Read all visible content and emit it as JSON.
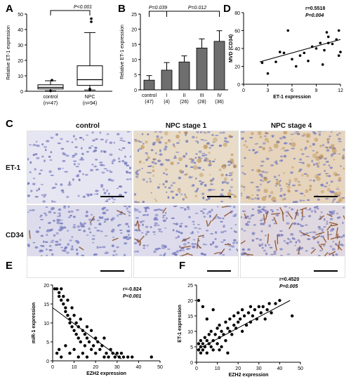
{
  "panel_labels": {
    "a": "A",
    "b": "B",
    "c": "C",
    "d": "D",
    "e": "E",
    "f": "F"
  },
  "colors": {
    "bar_fill": "#6e6e6e",
    "box_fill": "#ffffff",
    "stain_blue": "#7b7fc0",
    "stain_brown": "#8c4a1c",
    "tissue_bg": "#dcdcef",
    "point": "#000000"
  },
  "chart_data": [
    {
      "type": "box",
      "panel": "A",
      "ylabel": "Relative ET-1 expression",
      "ylim": [
        0,
        50
      ],
      "yticks": [
        "0",
        "10",
        "20",
        "30",
        "40",
        "50"
      ],
      "categories": [
        "control",
        "NPC"
      ],
      "counts": [
        "(n=47)",
        "(n=94)"
      ],
      "boxes": [
        {
          "min": 0.3,
          "q1": 1.5,
          "median": 2.5,
          "q3": 4.2,
          "max": 6.8,
          "outliers": [
            7.2,
            0.2
          ]
        },
        {
          "min": 0.8,
          "q1": 3.8,
          "median": 7.5,
          "q3": 16.5,
          "max": 38,
          "outliers": [
            45,
            47,
            1,
            1.5
          ]
        }
      ],
      "annotation": "P<0.001"
    },
    {
      "type": "bar",
      "panel": "B",
      "ylabel": "Relative ET-1 expression",
      "ylim": [
        0,
        25
      ],
      "yticks": [
        "0",
        "5",
        "10",
        "15",
        "20",
        "25"
      ],
      "categories": [
        "control",
        "I",
        "II",
        "III",
        "IV"
      ],
      "counts": [
        "(47)",
        "(4)",
        "(26)",
        "(28)",
        "(36)"
      ],
      "values": [
        3.2,
        6.5,
        9.2,
        13.8,
        16
      ],
      "errors": [
        1.5,
        2.5,
        2.0,
        3.0,
        3.5
      ],
      "annotations": [
        "P=0.039",
        "P=0.012"
      ]
    },
    {
      "type": "scatter",
      "panel": "D",
      "xlabel": "ET-1 expression",
      "ylabel": "MVD (CD34)",
      "xlim": [
        0,
        12
      ],
      "ylim": [
        0,
        80
      ],
      "xticks": [
        "0",
        "3",
        "6",
        "9",
        "12"
      ],
      "yticks": [
        "0",
        "20",
        "40",
        "60",
        "80"
      ],
      "points": [
        [
          2.3,
          24
        ],
        [
          3.0,
          12
        ],
        [
          4.0,
          25
        ],
        [
          4.5,
          36
        ],
        [
          5.0,
          35
        ],
        [
          5.5,
          60
        ],
        [
          6.0,
          28
        ],
        [
          6.5,
          20
        ],
        [
          7.0,
          32
        ],
        [
          7.5,
          35
        ],
        [
          8.0,
          26
        ],
        [
          8.5,
          42
        ],
        [
          9.0,
          40
        ],
        [
          9.5,
          46
        ],
        [
          9.8,
          22
        ],
        [
          10.0,
          38
        ],
        [
          10.3,
          58
        ],
        [
          10.5,
          53
        ],
        [
          11.0,
          45
        ],
        [
          11.5,
          50
        ],
        [
          11.8,
          60
        ],
        [
          12.0,
          36
        ],
        [
          11.8,
          32
        ],
        [
          10.5,
          46
        ]
      ],
      "fit": [
        [
          2,
          25
        ],
        [
          12,
          50
        ]
      ],
      "stats": [
        "r=0.5518",
        "P=0.004"
      ]
    },
    {
      "type": "scatter",
      "panel": "E",
      "xlabel": "EZH2 expression",
      "ylabel": "miR-1 expression",
      "xlim": [
        0,
        50
      ],
      "ylim": [
        0,
        20
      ],
      "xticks": [
        "0",
        "10",
        "20",
        "30",
        "40",
        "50"
      ],
      "yticks": [
        "0",
        "5",
        "10",
        "15",
        "20"
      ],
      "points": [
        [
          1,
          19
        ],
        [
          2,
          19
        ],
        [
          3,
          18
        ],
        [
          3,
          17
        ],
        [
          4,
          16
        ],
        [
          4,
          19
        ],
        [
          5,
          15
        ],
        [
          5,
          17
        ],
        [
          6,
          14
        ],
        [
          6,
          13
        ],
        [
          7,
          12
        ],
        [
          7,
          16
        ],
        [
          8,
          11
        ],
        [
          8,
          10
        ],
        [
          9,
          14
        ],
        [
          9,
          9
        ],
        [
          10,
          12
        ],
        [
          10,
          8
        ],
        [
          11,
          10
        ],
        [
          11,
          7
        ],
        [
          12,
          9
        ],
        [
          12,
          6
        ],
        [
          13,
          11
        ],
        [
          13,
          5
        ],
        [
          14,
          8
        ],
        [
          15,
          7
        ],
        [
          15,
          4
        ],
        [
          16,
          6
        ],
        [
          16,
          9
        ],
        [
          17,
          5
        ],
        [
          18,
          3
        ],
        [
          18,
          8
        ],
        [
          19,
          4
        ],
        [
          20,
          2
        ],
        [
          20,
          6
        ],
        [
          21,
          5
        ],
        [
          22,
          3
        ],
        [
          23,
          4
        ],
        [
          24,
          1
        ],
        [
          24,
          6
        ],
        [
          25,
          2
        ],
        [
          26,
          1
        ],
        [
          27,
          3
        ],
        [
          28,
          2
        ],
        [
          29,
          1
        ],
        [
          30,
          2
        ],
        [
          31,
          1
        ],
        [
          32,
          2
        ],
        [
          33,
          1
        ],
        [
          35,
          1
        ],
        [
          37,
          1
        ],
        [
          46,
          1
        ],
        [
          2,
          2
        ],
        [
          3,
          3
        ],
        [
          4,
          1
        ],
        [
          6,
          4
        ],
        [
          8,
          2
        ],
        [
          10,
          3
        ],
        [
          12,
          1
        ],
        [
          14,
          2
        ],
        [
          16,
          1
        ]
      ],
      "fit": [
        [
          0,
          14
        ],
        [
          32,
          0.5
        ]
      ],
      "stats": [
        "r=-0.824",
        "P<0.001"
      ]
    },
    {
      "type": "scatter",
      "panel": "F",
      "xlabel": "EZH2 expression",
      "ylabel": "ET-1 expression",
      "xlim": [
        0,
        50
      ],
      "ylim": [
        0,
        25
      ],
      "xticks": [
        "0",
        "10",
        "20",
        "30",
        "40",
        "50"
      ],
      "yticks": [
        "0",
        "5",
        "10",
        "15",
        "20",
        "25"
      ],
      "points": [
        [
          1,
          4
        ],
        [
          1,
          6
        ],
        [
          2,
          3
        ],
        [
          2,
          5
        ],
        [
          2,
          7
        ],
        [
          3,
          4
        ],
        [
          3,
          6
        ],
        [
          4,
          5
        ],
        [
          4,
          8
        ],
        [
          5,
          3
        ],
        [
          5,
          7
        ],
        [
          6,
          6
        ],
        [
          6,
          9
        ],
        [
          7,
          5
        ],
        [
          7,
          10
        ],
        [
          8,
          4
        ],
        [
          8,
          7
        ],
        [
          9,
          9
        ],
        [
          10,
          6
        ],
        [
          10,
          11
        ],
        [
          11,
          8
        ],
        [
          11,
          12
        ],
        [
          12,
          10
        ],
        [
          12,
          5
        ],
        [
          13,
          9
        ],
        [
          14,
          7
        ],
        [
          14,
          13
        ],
        [
          15,
          11
        ],
        [
          16,
          10
        ],
        [
          16,
          14
        ],
        [
          17,
          9
        ],
        [
          18,
          12
        ],
        [
          18,
          15
        ],
        [
          19,
          11
        ],
        [
          20,
          13
        ],
        [
          20,
          16
        ],
        [
          21,
          14
        ],
        [
          22,
          10
        ],
        [
          22,
          17
        ],
        [
          23,
          15
        ],
        [
          24,
          12
        ],
        [
          25,
          16
        ],
        [
          26,
          18
        ],
        [
          26,
          13
        ],
        [
          27,
          15
        ],
        [
          28,
          17
        ],
        [
          29,
          14
        ],
        [
          30,
          18
        ],
        [
          31,
          16
        ],
        [
          32,
          18
        ],
        [
          33,
          14
        ],
        [
          34,
          17
        ],
        [
          35,
          19
        ],
        [
          36,
          16
        ],
        [
          38,
          19
        ],
        [
          40,
          20
        ],
        [
          46,
          15
        ],
        [
          3,
          18
        ],
        [
          1,
          20
        ],
        [
          5,
          14
        ],
        [
          8,
          17
        ],
        [
          11,
          4
        ],
        [
          15,
          3
        ]
      ],
      "fit": [
        [
          0,
          4
        ],
        [
          45,
          20
        ]
      ],
      "stats": [
        "r=0.4520",
        "P=0.005"
      ]
    }
  ],
  "panel_c": {
    "columns": [
      "control",
      "NPC stage 1",
      "NPC stage 4"
    ],
    "rows": [
      "ET-1",
      "CD34"
    ]
  }
}
